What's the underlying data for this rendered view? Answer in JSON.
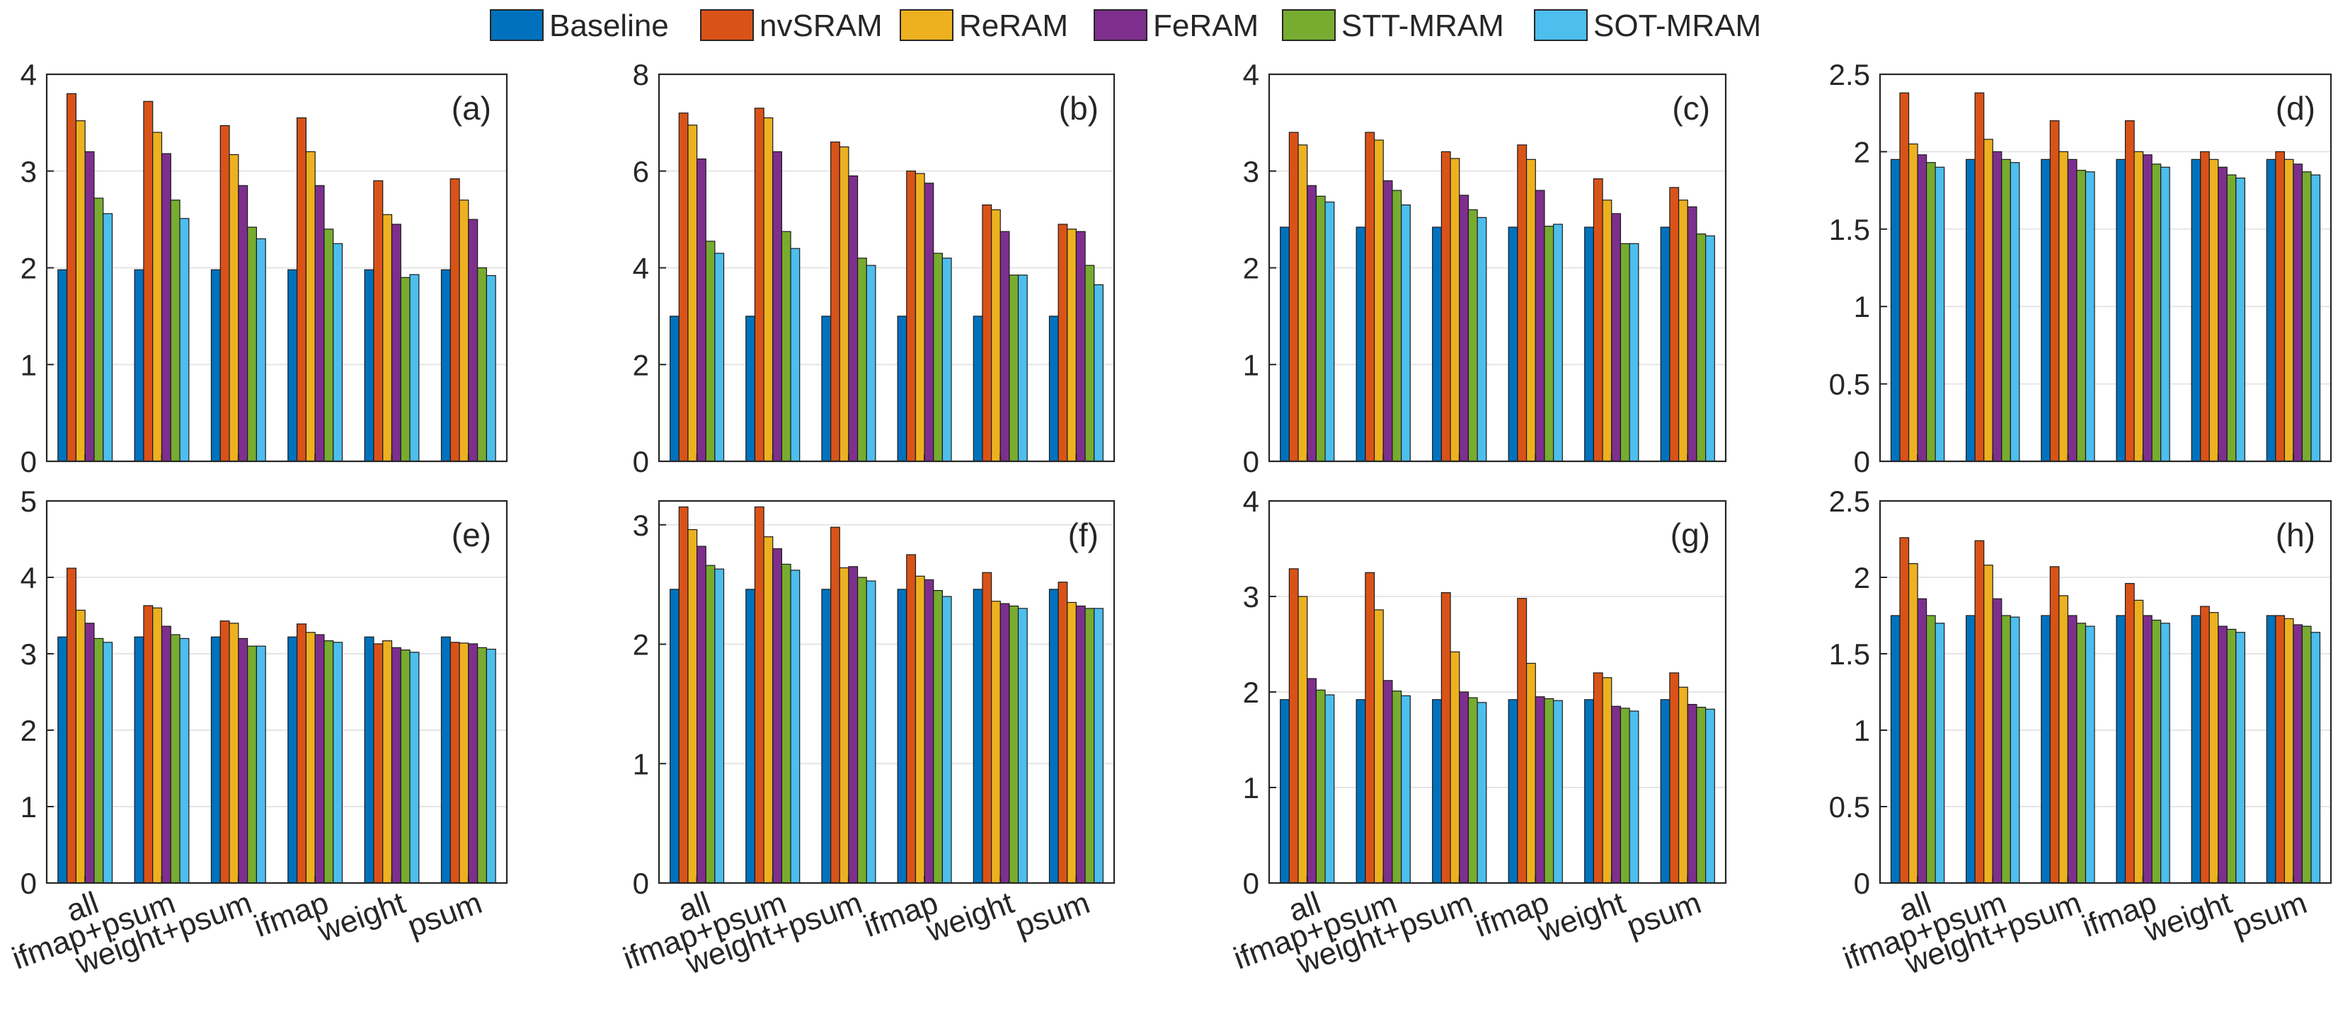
{
  "legend": {
    "position": "top",
    "series": [
      "Baseline",
      "nvSRAM",
      "ReRAM",
      "FeRAM",
      "STT-MRAM",
      "SOT-MRAM"
    ]
  },
  "colors": [
    "#0072BD",
    "#D95319",
    "#EDB120",
    "#7E2F8E",
    "#77AC30",
    "#4DBEEE"
  ],
  "chart_data": [
    {
      "type": "bar",
      "label": "(a)",
      "categories": [
        "all",
        "ifmap+psum",
        "weight+psum",
        "ifmap",
        "weight",
        "psum"
      ],
      "ylim": [
        0,
        4
      ],
      "yticks": [
        "0",
        "1",
        "2",
        "3",
        "4"
      ],
      "grid": true,
      "show_xlabels": false,
      "series": [
        {
          "name": "Baseline",
          "values": [
            1.98,
            1.98,
            1.98,
            1.98,
            1.98,
            1.98
          ]
        },
        {
          "name": "nvSRAM",
          "values": [
            3.8,
            3.72,
            3.47,
            3.55,
            2.9,
            2.92
          ]
        },
        {
          "name": "ReRAM",
          "values": [
            3.52,
            3.4,
            3.17,
            3.2,
            2.55,
            2.7
          ]
        },
        {
          "name": "FeRAM",
          "values": [
            3.2,
            3.18,
            2.85,
            2.85,
            2.45,
            2.5
          ]
        },
        {
          "name": "STT-MRAM",
          "values": [
            2.72,
            2.7,
            2.42,
            2.4,
            1.9,
            2.0
          ]
        },
        {
          "name": "SOT-MRAM",
          "values": [
            2.56,
            2.51,
            2.3,
            2.25,
            1.93,
            1.92
          ]
        }
      ]
    },
    {
      "type": "bar",
      "label": "(b)",
      "categories": [
        "all",
        "ifmap+psum",
        "weight+psum",
        "ifmap",
        "weight",
        "psum"
      ],
      "ylim": [
        0,
        8
      ],
      "yticks": [
        "0",
        "2",
        "4",
        "6",
        "8"
      ],
      "grid": true,
      "show_xlabels": false,
      "series": [
        {
          "name": "Baseline",
          "values": [
            3.0,
            3.0,
            3.0,
            3.0,
            3.0,
            3.0
          ]
        },
        {
          "name": "nvSRAM",
          "values": [
            7.2,
            7.3,
            6.6,
            6.0,
            5.3,
            4.9
          ]
        },
        {
          "name": "ReRAM",
          "values": [
            6.95,
            7.1,
            6.5,
            5.95,
            5.2,
            4.8
          ]
        },
        {
          "name": "FeRAM",
          "values": [
            6.25,
            6.4,
            5.9,
            5.75,
            4.75,
            4.75
          ]
        },
        {
          "name": "STT-MRAM",
          "values": [
            4.55,
            4.75,
            4.2,
            4.3,
            3.85,
            4.05
          ]
        },
        {
          "name": "SOT-MRAM",
          "values": [
            4.3,
            4.4,
            4.05,
            4.2,
            3.85,
            3.65
          ]
        }
      ]
    },
    {
      "type": "bar",
      "label": "(c)",
      "categories": [
        "all",
        "ifmap+psum",
        "weight+psum",
        "ifmap",
        "weight",
        "psum"
      ],
      "ylim": [
        0,
        4
      ],
      "yticks": [
        "0",
        "1",
        "2",
        "3",
        "4"
      ],
      "grid": true,
      "show_xlabels": false,
      "series": [
        {
          "name": "Baseline",
          "values": [
            2.42,
            2.42,
            2.42,
            2.42,
            2.42,
            2.42
          ]
        },
        {
          "name": "nvSRAM",
          "values": [
            3.4,
            3.4,
            3.2,
            3.27,
            2.92,
            2.83
          ]
        },
        {
          "name": "ReRAM",
          "values": [
            3.27,
            3.32,
            3.13,
            3.12,
            2.7,
            2.7
          ]
        },
        {
          "name": "FeRAM",
          "values": [
            2.85,
            2.9,
            2.75,
            2.8,
            2.56,
            2.63
          ]
        },
        {
          "name": "STT-MRAM",
          "values": [
            2.74,
            2.8,
            2.6,
            2.43,
            2.25,
            2.35
          ]
        },
        {
          "name": "SOT-MRAM",
          "values": [
            2.68,
            2.65,
            2.52,
            2.45,
            2.25,
            2.33
          ]
        }
      ]
    },
    {
      "type": "bar",
      "label": "(d)",
      "categories": [
        "all",
        "ifmap+psum",
        "weight+psum",
        "ifmap",
        "weight",
        "psum"
      ],
      "ylim": [
        0,
        2.5
      ],
      "yticks": [
        "0",
        "0.5",
        "1",
        "1.5",
        "2",
        "2.5"
      ],
      "grid": true,
      "show_xlabels": false,
      "series": [
        {
          "name": "Baseline",
          "values": [
            1.95,
            1.95,
            1.95,
            1.95,
            1.95,
            1.95
          ]
        },
        {
          "name": "nvSRAM",
          "values": [
            2.38,
            2.38,
            2.2,
            2.2,
            2.0,
            2.0
          ]
        },
        {
          "name": "ReRAM",
          "values": [
            2.05,
            2.08,
            2.0,
            2.0,
            1.95,
            1.95
          ]
        },
        {
          "name": "FeRAM",
          "values": [
            1.98,
            2.0,
            1.95,
            1.98,
            1.9,
            1.92
          ]
        },
        {
          "name": "STT-MRAM",
          "values": [
            1.93,
            1.95,
            1.88,
            1.92,
            1.85,
            1.87
          ]
        },
        {
          "name": "SOT-MRAM",
          "values": [
            1.9,
            1.93,
            1.87,
            1.9,
            1.83,
            1.85
          ]
        }
      ]
    },
    {
      "type": "bar",
      "label": "(e)",
      "categories": [
        "all",
        "ifmap+psum",
        "weight+psum",
        "ifmap",
        "weight",
        "psum"
      ],
      "ylim": [
        0,
        5
      ],
      "yticks": [
        "0",
        "1",
        "2",
        "3",
        "4",
        "5"
      ],
      "grid": true,
      "show_xlabels": true,
      "series": [
        {
          "name": "Baseline",
          "values": [
            3.22,
            3.22,
            3.22,
            3.22,
            3.22,
            3.22
          ]
        },
        {
          "name": "nvSRAM",
          "values": [
            4.12,
            3.63,
            3.43,
            3.39,
            3.13,
            3.15
          ]
        },
        {
          "name": "ReRAM",
          "values": [
            3.57,
            3.6,
            3.4,
            3.28,
            3.17,
            3.14
          ]
        },
        {
          "name": "FeRAM",
          "values": [
            3.4,
            3.36,
            3.2,
            3.25,
            3.08,
            3.13
          ]
        },
        {
          "name": "STT-MRAM",
          "values": [
            3.2,
            3.25,
            3.1,
            3.17,
            3.05,
            3.08
          ]
        },
        {
          "name": "SOT-MRAM",
          "values": [
            3.15,
            3.2,
            3.1,
            3.15,
            3.02,
            3.06
          ]
        }
      ]
    },
    {
      "type": "bar",
      "label": "(f)",
      "categories": [
        "all",
        "ifmap+psum",
        "weight+psum",
        "ifmap",
        "weight",
        "psum"
      ],
      "ylim": [
        0,
        3.2
      ],
      "yticks": [
        "0",
        "1",
        "2",
        "3"
      ],
      "ytick_values": [
        0,
        1,
        2,
        3
      ],
      "grid": true,
      "show_xlabels": true,
      "series": [
        {
          "name": "Baseline",
          "values": [
            2.46,
            2.46,
            2.46,
            2.46,
            2.46,
            2.46
          ]
        },
        {
          "name": "nvSRAM",
          "values": [
            3.15,
            3.15,
            2.98,
            2.75,
            2.6,
            2.52
          ]
        },
        {
          "name": "ReRAM",
          "values": [
            2.96,
            2.9,
            2.64,
            2.57,
            2.36,
            2.35
          ]
        },
        {
          "name": "FeRAM",
          "values": [
            2.82,
            2.8,
            2.65,
            2.54,
            2.34,
            2.32
          ]
        },
        {
          "name": "STT-MRAM",
          "values": [
            2.66,
            2.67,
            2.56,
            2.45,
            2.32,
            2.3
          ]
        },
        {
          "name": "SOT-MRAM",
          "values": [
            2.63,
            2.62,
            2.53,
            2.4,
            2.3,
            2.3
          ]
        }
      ]
    },
    {
      "type": "bar",
      "label": "(g)",
      "categories": [
        "all",
        "ifmap+psum",
        "weight+psum",
        "ifmap",
        "weight",
        "psum"
      ],
      "ylim": [
        0,
        4
      ],
      "yticks": [
        "0",
        "1",
        "2",
        "3",
        "4"
      ],
      "grid": true,
      "show_xlabels": true,
      "series": [
        {
          "name": "Baseline",
          "values": [
            1.92,
            1.92,
            1.92,
            1.92,
            1.92,
            1.92
          ]
        },
        {
          "name": "nvSRAM",
          "values": [
            3.29,
            3.25,
            3.04,
            2.98,
            2.2,
            2.2
          ]
        },
        {
          "name": "ReRAM",
          "values": [
            3.0,
            2.86,
            2.42,
            2.3,
            2.15,
            2.05
          ]
        },
        {
          "name": "FeRAM",
          "values": [
            2.14,
            2.12,
            2.0,
            1.95,
            1.85,
            1.87
          ]
        },
        {
          "name": "STT-MRAM",
          "values": [
            2.02,
            2.01,
            1.94,
            1.93,
            1.83,
            1.84
          ]
        },
        {
          "name": "SOT-MRAM",
          "values": [
            1.97,
            1.96,
            1.89,
            1.91,
            1.8,
            1.82
          ]
        }
      ]
    },
    {
      "type": "bar",
      "label": "(h)",
      "categories": [
        "all",
        "ifmap+psum",
        "weight+psum",
        "ifmap",
        "weight",
        "psum"
      ],
      "ylim": [
        0,
        2.5
      ],
      "yticks": [
        "0",
        "0.5",
        "1",
        "1.5",
        "2",
        "2.5"
      ],
      "grid": true,
      "show_xlabels": true,
      "series": [
        {
          "name": "Baseline",
          "values": [
            1.75,
            1.75,
            1.75,
            1.75,
            1.75,
            1.75
          ]
        },
        {
          "name": "nvSRAM",
          "values": [
            2.26,
            2.24,
            2.07,
            1.96,
            1.81,
            1.75
          ]
        },
        {
          "name": "ReRAM",
          "values": [
            2.09,
            2.08,
            1.88,
            1.85,
            1.77,
            1.73
          ]
        },
        {
          "name": "FeRAM",
          "values": [
            1.86,
            1.86,
            1.75,
            1.75,
            1.68,
            1.69
          ]
        },
        {
          "name": "STT-MRAM",
          "values": [
            1.75,
            1.75,
            1.7,
            1.72,
            1.66,
            1.68
          ]
        },
        {
          "name": "SOT-MRAM",
          "values": [
            1.7,
            1.74,
            1.68,
            1.7,
            1.64,
            1.64
          ]
        }
      ]
    }
  ]
}
